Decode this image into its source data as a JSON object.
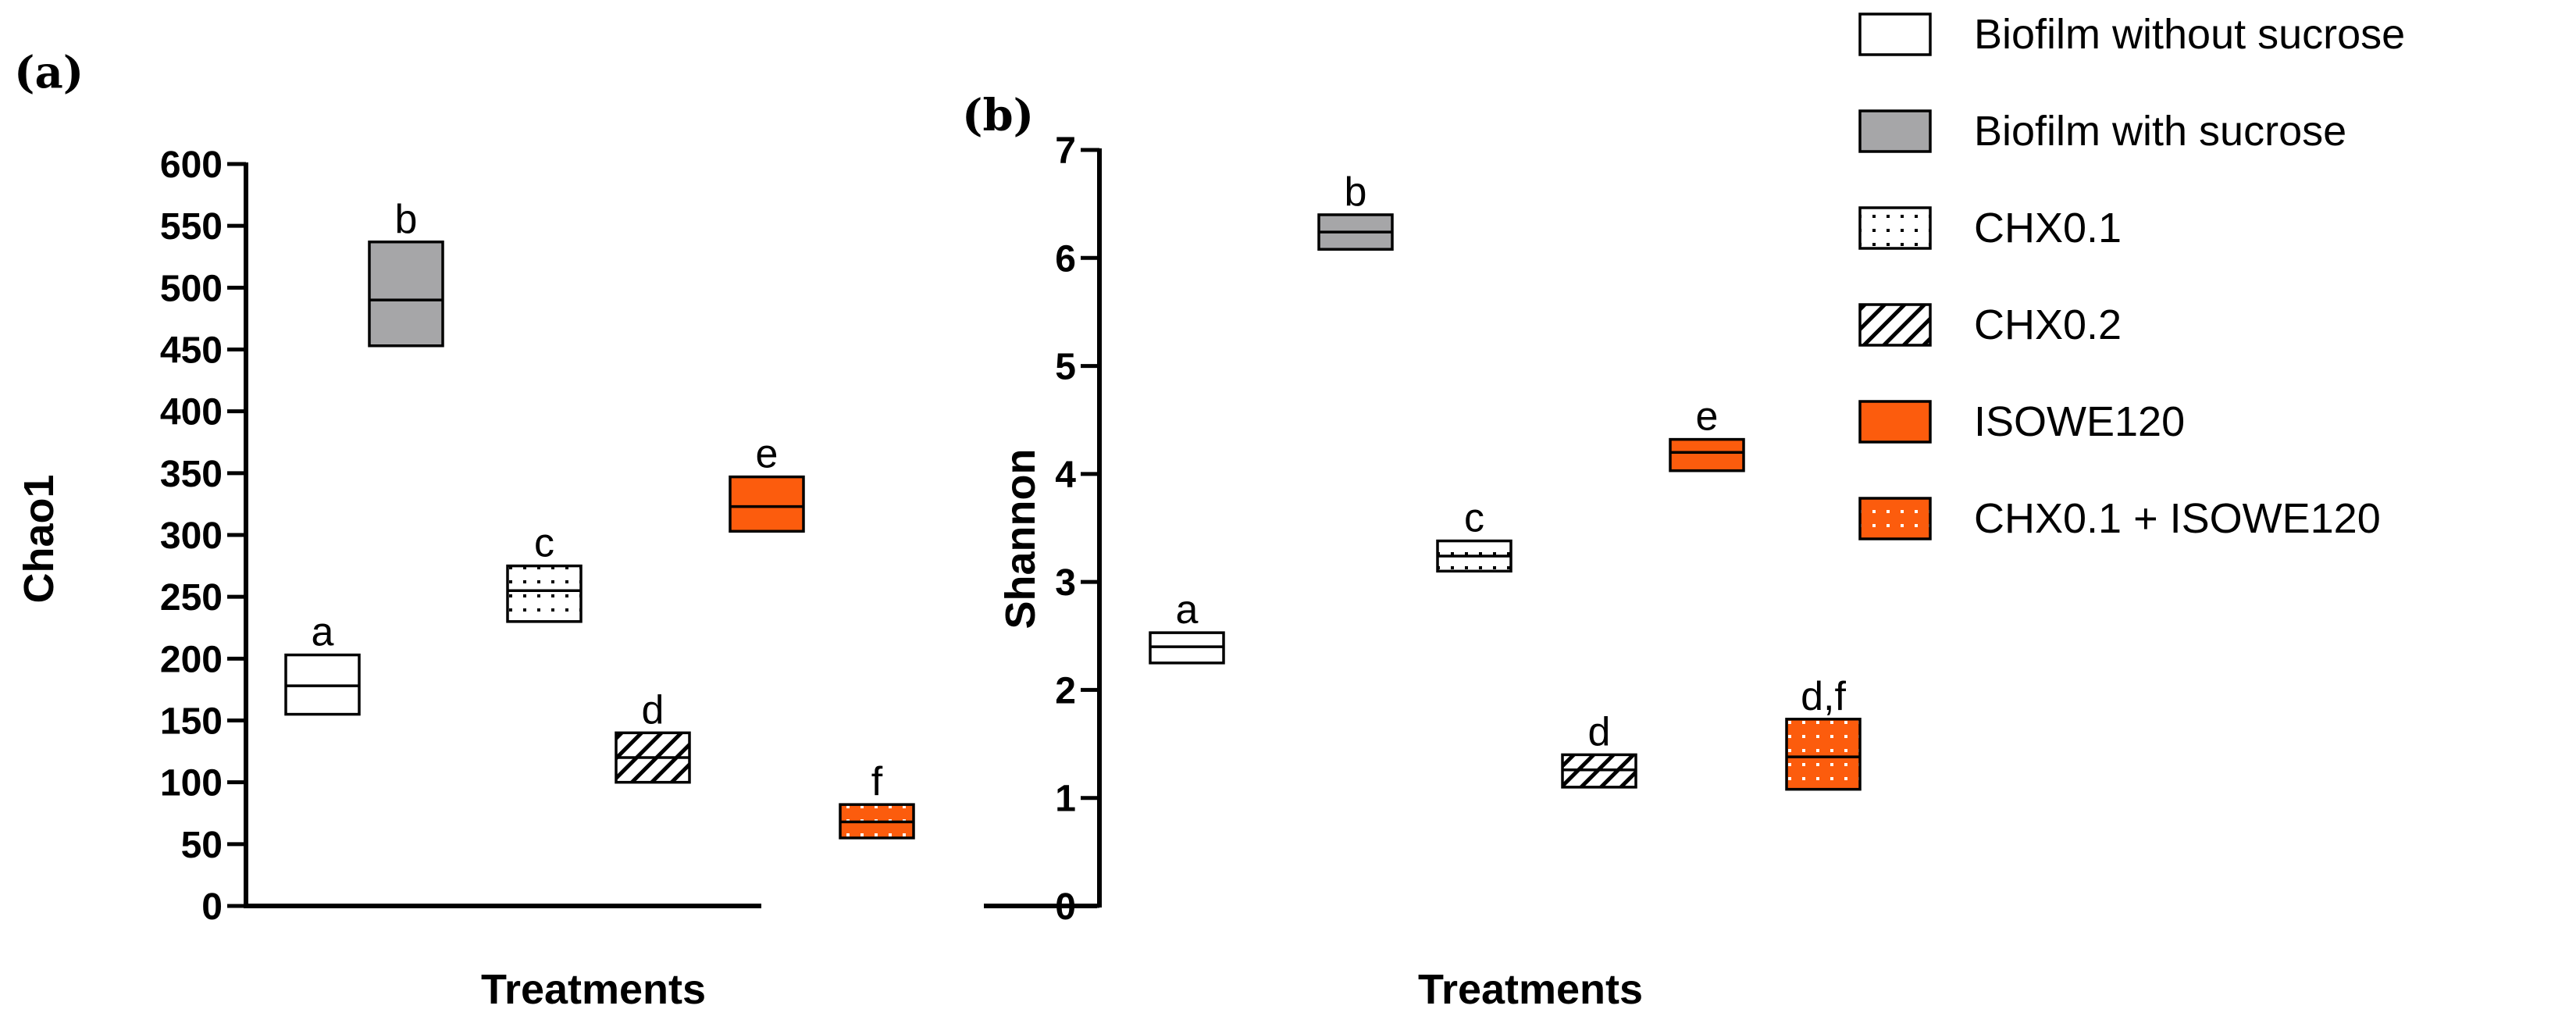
{
  "colors": {
    "black": "#000000",
    "white": "#ffffff",
    "gray": "#a6a6a8",
    "orange": "#fc5c0d"
  },
  "chart_data": [
    {
      "type": "box",
      "panel_label": "(a)",
      "ylabel": "Chao1",
      "xlabel": "Treatments",
      "ylim": [
        0,
        600
      ],
      "yticks": [
        0,
        50,
        100,
        150,
        200,
        250,
        300,
        350,
        400,
        450,
        500,
        550,
        600
      ],
      "ytick_labels": [
        "0",
        "50",
        "100",
        "150",
        "200",
        "250",
        "300",
        "350",
        "400",
        "450",
        "500",
        "550",
        "600"
      ],
      "series": [
        {
          "name": "Biofilm without sucrose",
          "low": 155,
          "median": 178,
          "high": 203,
          "sig": "a"
        },
        {
          "name": "Biofilm with sucrose",
          "low": 453,
          "median": 490,
          "high": 537,
          "sig": "b"
        },
        {
          "name": "CHX0.1",
          "low": 230,
          "median": 255,
          "high": 275,
          "sig": "c"
        },
        {
          "name": "CHX0.2",
          "low": 100,
          "median": 120,
          "high": 140,
          "sig": "d"
        },
        {
          "name": "ISOWE120",
          "low": 303,
          "median": 323,
          "high": 347,
          "sig": "e"
        },
        {
          "name": "CHX0.1 + ISOWE120",
          "low": 55,
          "median": 68,
          "high": 82,
          "sig": "f"
        }
      ]
    },
    {
      "type": "box",
      "panel_label": "(b)",
      "ylabel": "Shannon",
      "xlabel": "Treatments",
      "ylim": [
        0,
        7
      ],
      "yticks": [
        0,
        1,
        2,
        3,
        4,
        5,
        6,
        7
      ],
      "ytick_labels": [
        "0",
        "1",
        "2",
        "3",
        "4",
        "5",
        "6",
        "7"
      ],
      "series": [
        {
          "name": "Biofilm without sucrose",
          "low": 2.25,
          "median": 2.4,
          "high": 2.53,
          "sig": "a"
        },
        {
          "name": "Biofilm with sucrose",
          "low": 6.08,
          "median": 6.24,
          "high": 6.4,
          "sig": "b"
        },
        {
          "name": "CHX0.1",
          "low": 3.1,
          "median": 3.24,
          "high": 3.38,
          "sig": "c"
        },
        {
          "name": "CHX0.2",
          "low": 1.1,
          "median": 1.26,
          "high": 1.4,
          "sig": "d"
        },
        {
          "name": "ISOWE120",
          "low": 4.03,
          "median": 4.2,
          "high": 4.32,
          "sig": "e"
        },
        {
          "name": "CHX0.1 + ISOWE120",
          "low": 1.08,
          "median": 1.38,
          "high": 1.73,
          "sig": "d,f"
        }
      ]
    }
  ],
  "legend": [
    {
      "label": "Biofilm without sucrose",
      "style": "white"
    },
    {
      "label": "Biofilm with sucrose",
      "style": "gray"
    },
    {
      "label": "CHX0.1",
      "style": "dots"
    },
    {
      "label": "CHX0.2",
      "style": "hatch"
    },
    {
      "label": "ISOWE120",
      "style": "orange"
    },
    {
      "label": "CHX0.1 + ISOWE120",
      "style": "orange-dots"
    }
  ]
}
